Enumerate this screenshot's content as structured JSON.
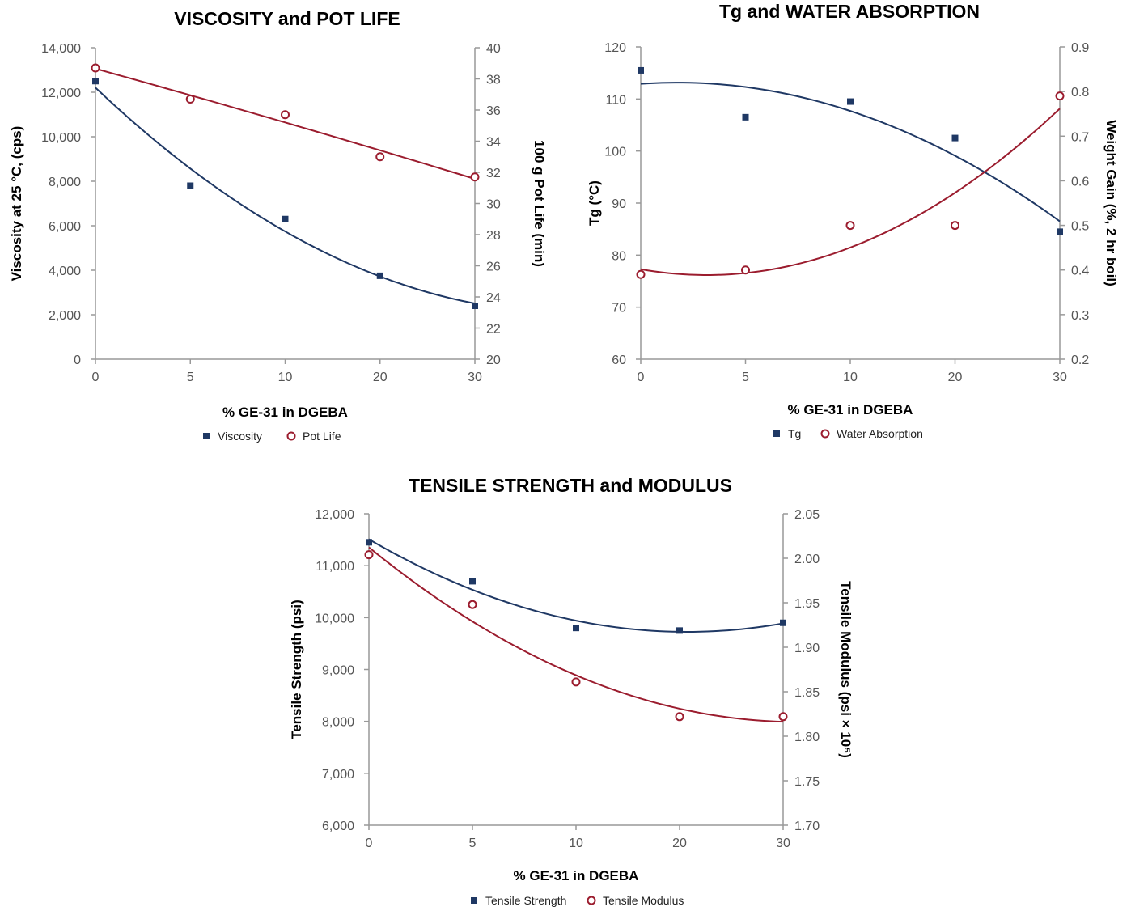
{
  "colors": {
    "navy": "#1f3864",
    "red": "#9b1c2e",
    "axis": "#999999"
  },
  "chart_data": [
    {
      "type": "scatter",
      "title": "VISCOSITY and POT LIFE",
      "xlabel": "% GE-31 in DGEBA",
      "ylabel": "Viscosity at 25 °C, (cps)",
      "y2label": "100 g Pot Life (min)",
      "x_categories": [
        "0",
        "5",
        "10",
        "20",
        "30"
      ],
      "ylim": [
        0,
        14000
      ],
      "y2lim": [
        20,
        40
      ],
      "yticks": [
        "0",
        "2,000",
        "4,000",
        "6,000",
        "8,000",
        "10,000",
        "12,000",
        "14,000"
      ],
      "y2ticks": [
        "20",
        "22",
        "24",
        "26",
        "28",
        "30",
        "32",
        "34",
        "36",
        "38",
        "40"
      ],
      "grid": false,
      "legend_position": "bottom",
      "series": [
        {
          "name": "Viscosity",
          "marker": "square",
          "color": "#1f3864",
          "axis": "left",
          "x": [
            "0",
            "5",
            "10",
            "20",
            "30"
          ],
          "values": [
            12500,
            7800,
            6300,
            3750,
            2400
          ],
          "trendline": "polynomial"
        },
        {
          "name": "Pot Life",
          "marker": "circle",
          "color": "#9b1c2e",
          "axis": "right",
          "x": [
            "0",
            "5",
            "10",
            "20",
            "30"
          ],
          "values": [
            38.7,
            36.7,
            35.7,
            33.0,
            31.7
          ],
          "trendline": "polynomial"
        }
      ]
    },
    {
      "type": "scatter",
      "title": "Tg and WATER ABSORPTION",
      "xlabel": "% GE-31 in DGEBA",
      "ylabel": "Tg (°C)",
      "y2label": "Weight Gain (%, 2 hr boil)",
      "x_categories": [
        "0",
        "5",
        "10",
        "20",
        "30"
      ],
      "ylim": [
        60,
        120
      ],
      "y2lim": [
        0.2,
        0.9
      ],
      "yticks": [
        "60",
        "70",
        "80",
        "90",
        "100",
        "110",
        "120"
      ],
      "y2ticks": [
        "0.2",
        "0.3",
        "0.4",
        "0.5",
        "0.6",
        "0.7",
        "0.8",
        "0.9"
      ],
      "grid": false,
      "legend_position": "bottom",
      "series": [
        {
          "name": "Tg",
          "marker": "square",
          "color": "#1f3864",
          "axis": "left",
          "x": [
            "0",
            "5",
            "10",
            "20",
            "30"
          ],
          "values": [
            115.5,
            106.5,
            109.5,
            102.5,
            84.5
          ],
          "trendline": "polynomial"
        },
        {
          "name": "Water Absorption",
          "marker": "circle",
          "color": "#9b1c2e",
          "axis": "right",
          "x": [
            "0",
            "5",
            "10",
            "20",
            "30"
          ],
          "values": [
            0.39,
            0.4,
            0.5,
            0.5,
            0.79
          ],
          "trendline": "polynomial"
        }
      ]
    },
    {
      "type": "scatter",
      "title": "TENSILE STRENGTH and MODULUS",
      "xlabel": "% GE-31 in DGEBA",
      "ylabel": "Tensile Strength (psi)",
      "y2label": "Tensile Modulus (psi × 10⁵)",
      "x_categories": [
        "0",
        "5",
        "10",
        "20",
        "30"
      ],
      "ylim": [
        6000,
        12000
      ],
      "y2lim": [
        1.7,
        2.05
      ],
      "yticks": [
        "6,000",
        "7,000",
        "8,000",
        "9,000",
        "10,000",
        "11,000",
        "12,000"
      ],
      "y2ticks": [
        "1.70",
        "1.75",
        "1.80",
        "1.85",
        "1.90",
        "1.95",
        "2.00",
        "2.05"
      ],
      "grid": false,
      "legend_position": "bottom",
      "series": [
        {
          "name": "Tensile Strength",
          "marker": "square",
          "color": "#1f3864",
          "axis": "left",
          "x": [
            "0",
            "5",
            "10",
            "20",
            "30"
          ],
          "values": [
            11450,
            10700,
            9800,
            9750,
            9900
          ],
          "trendline": "polynomial"
        },
        {
          "name": "Tensile Modulus",
          "marker": "circle",
          "color": "#9b1c2e",
          "axis": "right",
          "x": [
            "0",
            "5",
            "10",
            "20",
            "30"
          ],
          "values": [
            2.004,
            1.948,
            1.861,
            1.822,
            1.822
          ],
          "trendline": "polynomial"
        }
      ]
    }
  ]
}
